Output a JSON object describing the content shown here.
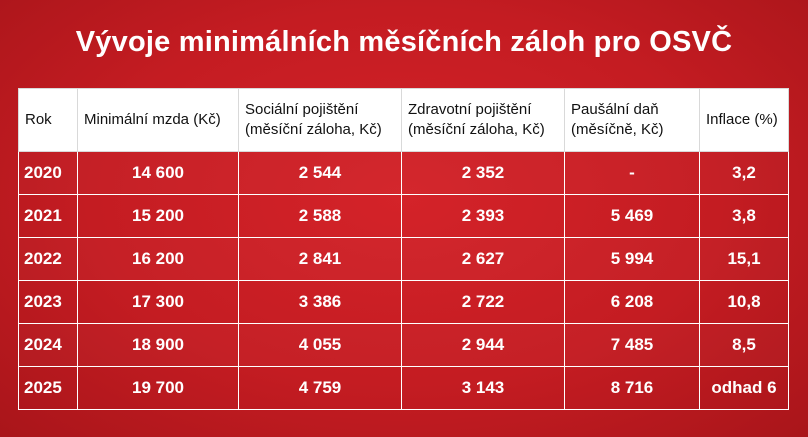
{
  "title": "Vývoje minimálních měsíčních záloh pro OSVČ",
  "table": {
    "headers": [
      "Rok",
      "Minimální mzda (Kč)",
      "Sociální pojištění (měsíční záloha, Kč)",
      "Zdravotní pojištění (měsíční záloha, Kč)",
      "Paušální daň (měsíčně, Kč)",
      "Inflace (%)"
    ],
    "rows": [
      [
        "2020",
        "14 600",
        "2 544",
        "2 352",
        "-",
        "3,2"
      ],
      [
        "2021",
        "15 200",
        "2 588",
        "2 393",
        "5 469",
        "3,8"
      ],
      [
        "2022",
        "16 200",
        "2 841",
        "2 627",
        "5 994",
        "15,1"
      ],
      [
        "2023",
        "17 300",
        "3 386",
        "2 722",
        "6 208",
        "10,8"
      ],
      [
        "2024",
        "18 900",
        "4 055",
        "2 944",
        "7 485",
        "8,5"
      ],
      [
        "2025",
        "19 700",
        "4 759",
        "3 143",
        "8 716",
        "odhad 6"
      ]
    ]
  },
  "colors": {
    "background": "#c81d23",
    "header_bg": "#ffffff",
    "text_light": "#ffffff"
  }
}
